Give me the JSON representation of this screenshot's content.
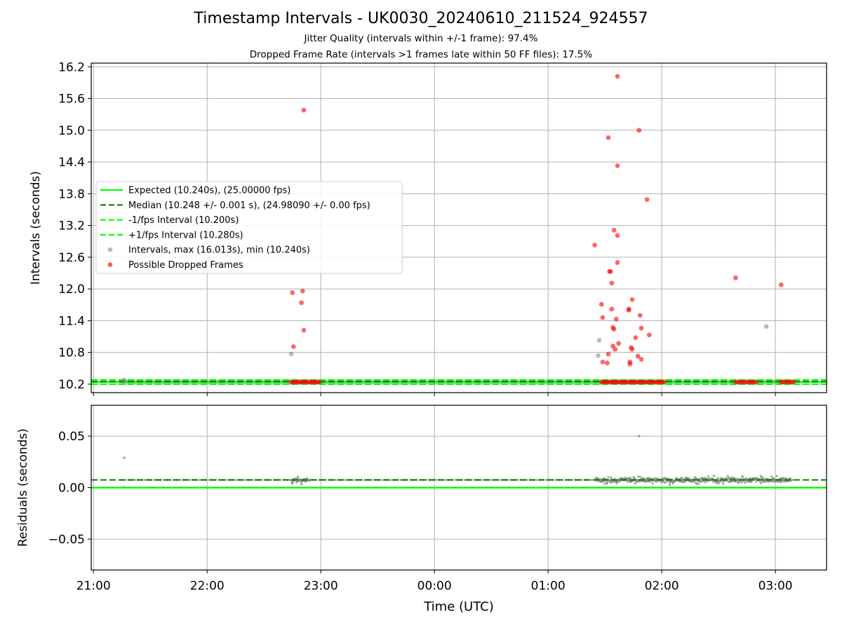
{
  "titles": {
    "main": "Timestamp Intervals - UK0030_20240610_211524_924557",
    "sub1": "Jitter Quality (intervals within +/-1 frame): 97.4%",
    "sub2": "Dropped Frame Rate (intervals >1 frames late within 50 FF files): 17.5%"
  },
  "colors": {
    "expected": "#00ff00",
    "median": "#008000",
    "interval": "#808080",
    "dropped": "#ff0000",
    "grid": "#b0b0b0"
  },
  "chart_data": [
    {
      "type": "scatter",
      "ylabel": "Intervals (seconds)",
      "xlabel": "",
      "x_unit": "hours (UTC, continuous from 21:00 = 21.0 through 03:00 = 27.0)",
      "xlim": [
        20.98,
        27.45
      ],
      "ylim": [
        10.04,
        16.27
      ],
      "yticks": [
        10.2,
        10.8,
        11.4,
        12.0,
        12.6,
        13.2,
        13.8,
        14.4,
        15.0,
        15.6,
        16.2
      ],
      "ytick_labels": [
        "10.2",
        "10.8",
        "11.4",
        "12.0",
        "12.6",
        "13.2",
        "13.8",
        "14.4",
        "15.0",
        "15.6",
        "16.2"
      ],
      "xticks": [
        21,
        22,
        23,
        24,
        25,
        26,
        27
      ],
      "grid": true,
      "legend_position": "center-left",
      "legend": [
        {
          "label": "Expected (10.240s), (25.00000 fps)",
          "style": "solid-line",
          "color": "#00ff00"
        },
        {
          "label": "Median (10.248 +/- 0.001 s), (24.98090 +/- 0.00 fps)",
          "style": "dashed-line",
          "color": "#008000"
        },
        {
          "label": "-1/fps Interval (10.200s)",
          "style": "dashed-line",
          "color": "#00ff00"
        },
        {
          "label": "+1/fps Interval (10.280s)",
          "style": "dashed-line",
          "color": "#00ff00"
        },
        {
          "label": "Intervals, max (16.013s), min (10.240s)",
          "style": "marker",
          "color": "#808080"
        },
        {
          "label": "Possible Dropped Frames",
          "style": "marker",
          "color": "#ff0000"
        }
      ],
      "reference_lines": {
        "expected": 10.24,
        "median": 10.248,
        "minus_one_frame": 10.2,
        "plus_one_frame": 10.28
      },
      "baseline_series": {
        "x_start": 21.25,
        "x_end": 27.17,
        "x_step": 0.0285,
        "y": 10.248
      },
      "dense_dropped_clusters": [
        {
          "x_start": 22.74,
          "x_end": 22.99,
          "y": 10.24,
          "count": 16
        },
        {
          "x_start": 25.47,
          "x_end": 26.02,
          "y": 10.24,
          "count": 32
        },
        {
          "x_start": 26.65,
          "x_end": 26.83,
          "y": 10.24,
          "count": 10
        },
        {
          "x_start": 27.05,
          "x_end": 27.16,
          "y": 10.24,
          "count": 7
        }
      ],
      "gray_points": [
        [
          21.27,
          10.28
        ],
        [
          22.74,
          10.77
        ],
        [
          25.44,
          10.74
        ],
        [
          25.45,
          11.03
        ],
        [
          26.92,
          11.29
        ]
      ],
      "dropped_points": [
        [
          22.75,
          11.93
        ],
        [
          22.76,
          10.91
        ],
        [
          22.83,
          11.74
        ],
        [
          22.84,
          11.96
        ],
        [
          22.85,
          11.22
        ],
        [
          22.85,
          15.38
        ],
        [
          25.41,
          12.83
        ],
        [
          25.47,
          11.71
        ],
        [
          25.48,
          11.46
        ],
        [
          25.48,
          10.62
        ],
        [
          25.52,
          10.6
        ],
        [
          25.53,
          10.77
        ],
        [
          25.53,
          14.86
        ],
        [
          25.54,
          12.33
        ],
        [
          25.55,
          12.33
        ],
        [
          25.56,
          12.11
        ],
        [
          25.56,
          11.62
        ],
        [
          25.57,
          11.27
        ],
        [
          25.57,
          10.92
        ],
        [
          25.58,
          11.24
        ],
        [
          25.58,
          13.11
        ],
        [
          25.59,
          10.86
        ],
        [
          25.6,
          11.43
        ],
        [
          25.61,
          16.02
        ],
        [
          25.61,
          14.33
        ],
        [
          25.61,
          12.5
        ],
        [
          25.61,
          13.01
        ],
        [
          25.62,
          10.97
        ],
        [
          25.71,
          11.62
        ],
        [
          25.71,
          11.6
        ],
        [
          25.72,
          10.62
        ],
        [
          25.72,
          10.58
        ],
        [
          25.73,
          10.89
        ],
        [
          25.74,
          11.8
        ],
        [
          25.74,
          10.86
        ],
        [
          25.77,
          11.08
        ],
        [
          25.79,
          10.73
        ],
        [
          25.8,
          15.0
        ],
        [
          25.81,
          11.5
        ],
        [
          25.82,
          10.67
        ],
        [
          25.82,
          11.26
        ],
        [
          25.87,
          13.69
        ],
        [
          25.89,
          11.13
        ],
        [
          26.65,
          12.21
        ],
        [
          27.05,
          12.08
        ]
      ]
    },
    {
      "type": "scatter",
      "ylabel": "Residuals (seconds)",
      "xlabel": "Time (UTC)",
      "xlim": [
        20.98,
        27.45
      ],
      "ylim": [
        -0.08,
        0.08
      ],
      "yticks": [
        -0.05,
        0.0,
        0.05
      ],
      "ytick_labels": [
        "−0.05",
        "0.00",
        "0.05"
      ],
      "xticks": [
        21,
        22,
        23,
        24,
        25,
        26,
        27
      ],
      "xtick_labels": [
        "21:00",
        "22:00",
        "23:00",
        "00:00",
        "01:00",
        "02:00",
        "03:00"
      ],
      "grid": true,
      "reference_lines": {
        "zero": 0.0,
        "median_residual": 0.0075
      },
      "baseline_series": {
        "x_start": 21.25,
        "x_end": 27.17,
        "x_step": 0.0285,
        "y": 0.0075
      },
      "noisy_segments": [
        {
          "x_start": 22.74,
          "x_end": 22.9,
          "y_center": 0.0075,
          "spread": 0.0035
        },
        {
          "x_start": 25.42,
          "x_end": 27.14,
          "y_center": 0.0075,
          "spread": 0.004
        }
      ],
      "outliers": [
        [
          21.27,
          0.029
        ],
        [
          21.27,
          0.0005
        ],
        [
          25.8,
          0.05
        ],
        [
          22.75,
          0.004
        ],
        [
          22.83,
          0.0035
        ],
        [
          26.07,
          0.003
        ]
      ]
    }
  ]
}
